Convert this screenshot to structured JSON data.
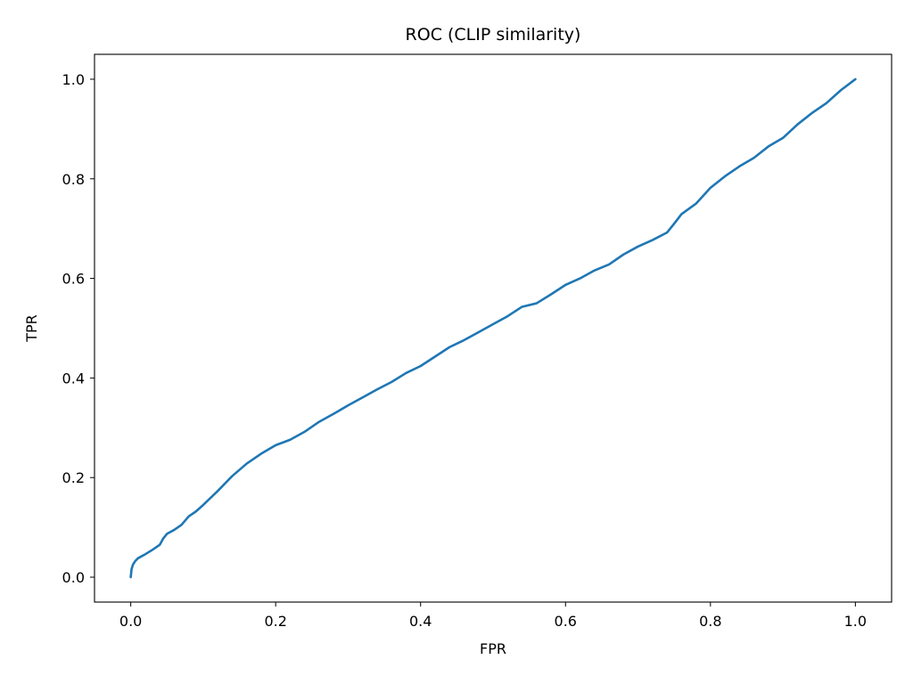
{
  "chart_data": {
    "type": "line",
    "title": "ROC (CLIP similarity)",
    "xlabel": "FPR",
    "ylabel": "TPR",
    "xlim": [
      -0.05,
      1.05
    ],
    "ylim": [
      -0.05,
      1.05
    ],
    "xticks": [
      0.0,
      0.2,
      0.4,
      0.6,
      0.8,
      1.0
    ],
    "yticks": [
      0.0,
      0.2,
      0.4,
      0.6,
      0.8,
      1.0
    ],
    "xtick_labels": [
      "0.0",
      "0.2",
      "0.4",
      "0.6",
      "0.8",
      "1.0"
    ],
    "ytick_labels": [
      "0.0",
      "0.2",
      "0.4",
      "0.6",
      "0.8",
      "1.0"
    ],
    "grid": false,
    "legend": "none",
    "series": [
      {
        "color": "#1f77b4",
        "x": [
          0.0,
          0.001,
          0.003,
          0.006,
          0.01,
          0.015,
          0.02,
          0.03,
          0.04,
          0.045,
          0.05,
          0.06,
          0.07,
          0.08,
          0.09,
          0.1,
          0.12,
          0.14,
          0.16,
          0.18,
          0.2,
          0.22,
          0.24,
          0.26,
          0.28,
          0.3,
          0.32,
          0.34,
          0.36,
          0.38,
          0.4,
          0.42,
          0.44,
          0.46,
          0.48,
          0.5,
          0.52,
          0.54,
          0.56,
          0.58,
          0.6,
          0.62,
          0.64,
          0.66,
          0.68,
          0.7,
          0.72,
          0.74,
          0.75,
          0.76,
          0.78,
          0.8,
          0.82,
          0.84,
          0.86,
          0.88,
          0.9,
          0.92,
          0.94,
          0.96,
          0.98,
          1.0
        ],
        "y": [
          0.0,
          0.015,
          0.025,
          0.032,
          0.038,
          0.042,
          0.046,
          0.055,
          0.065,
          0.078,
          0.087,
          0.095,
          0.105,
          0.122,
          0.132,
          0.145,
          0.173,
          0.203,
          0.228,
          0.248,
          0.265,
          0.276,
          0.292,
          0.312,
          0.328,
          0.345,
          0.361,
          0.377,
          0.392,
          0.41,
          0.424,
          0.443,
          0.462,
          0.476,
          0.492,
          0.508,
          0.524,
          0.543,
          0.55,
          0.568,
          0.587,
          0.6,
          0.616,
          0.628,
          0.648,
          0.664,
          0.677,
          0.692,
          0.71,
          0.729,
          0.75,
          0.782,
          0.805,
          0.825,
          0.842,
          0.865,
          0.882,
          0.909,
          0.932,
          0.952,
          0.978,
          1.0
        ]
      }
    ]
  }
}
